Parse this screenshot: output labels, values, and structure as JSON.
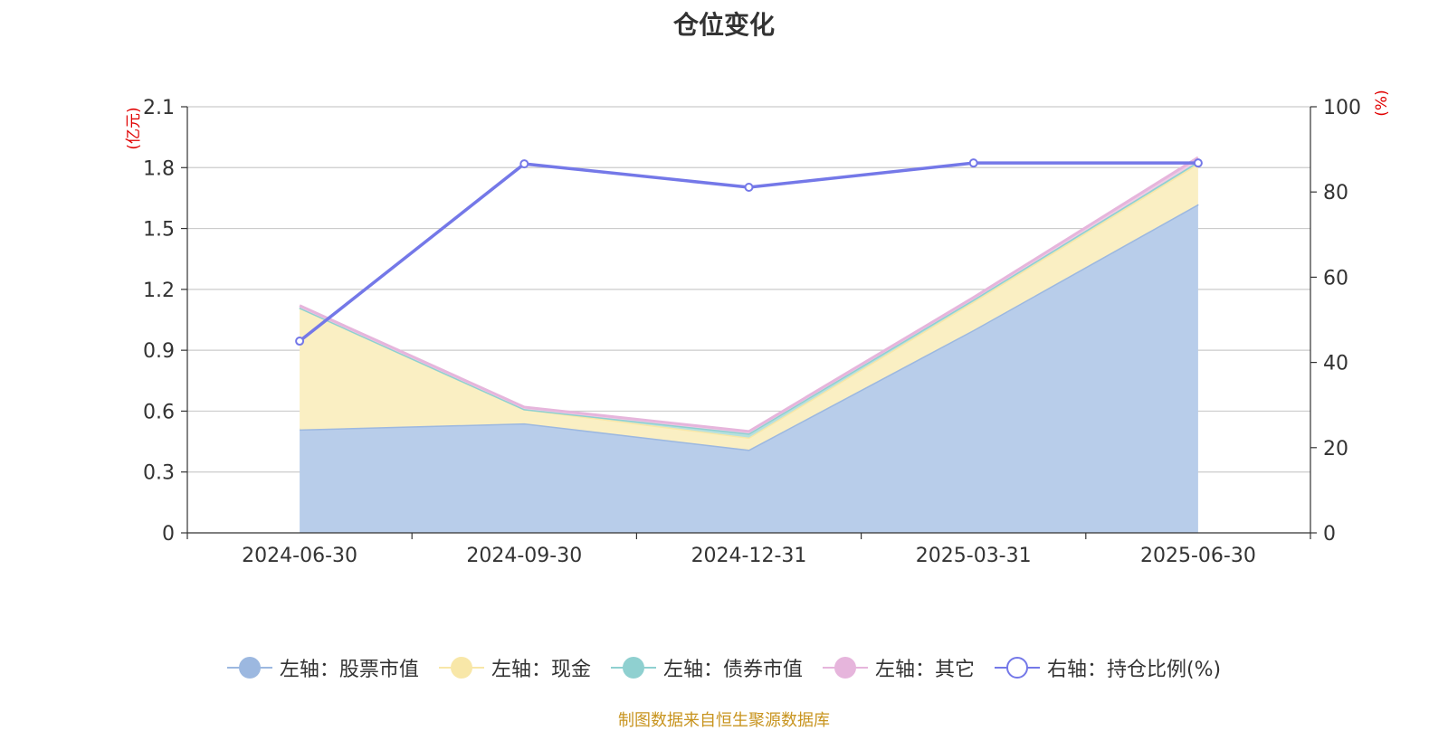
{
  "chart_data": {
    "type": "area",
    "title": "仓位变化",
    "categories": [
      "2024-06-30",
      "2024-09-30",
      "2024-12-31",
      "2025-03-31",
      "2025-06-30"
    ],
    "left_axis": {
      "unit": "(亿元)",
      "ylim": [
        0,
        2.1
      ],
      "ticks": [
        "0",
        "0.3",
        "0.6",
        "0.9",
        "1.2",
        "1.5",
        "1.8",
        "2.1"
      ]
    },
    "right_axis": {
      "unit": "(%)",
      "ylim": [
        0,
        100
      ],
      "ticks": [
        "0",
        "20",
        "40",
        "60",
        "80",
        "100"
      ]
    },
    "stacked": true,
    "grid": true,
    "legend_position": "bottom",
    "series": [
      {
        "name": "左轴：股票市值",
        "axis": "left",
        "type": "area",
        "color": "#9cb8e0",
        "fill": "#b8cdea",
        "values": [
          0.51,
          0.54,
          0.41,
          1.0,
          1.62
        ]
      },
      {
        "name": "左轴：现金",
        "axis": "left",
        "type": "area",
        "color": "#f8e7a8",
        "fill": "#faefc3",
        "values": [
          0.6,
          0.07,
          0.06,
          0.14,
          0.2
        ]
      },
      {
        "name": "左轴：债券市值",
        "axis": "left",
        "type": "area",
        "color": "#8fd0d0",
        "fill": "#b5e0de",
        "values": [
          0.0,
          0.0,
          0.02,
          0.01,
          0.01
        ]
      },
      {
        "name": "左轴：其它",
        "axis": "left",
        "type": "area",
        "color": "#e6b5dc",
        "fill": "#efcce6",
        "values": [
          0.01,
          0.01,
          0.01,
          0.01,
          0.02
        ]
      },
      {
        "name": "右轴：持仓比例(%)",
        "axis": "right",
        "type": "line",
        "color": "#7478e8",
        "values": [
          45.0,
          86.6,
          81.1,
          86.8,
          86.8
        ]
      }
    ],
    "source_note": "制图数据来自恒生聚源数据库"
  }
}
